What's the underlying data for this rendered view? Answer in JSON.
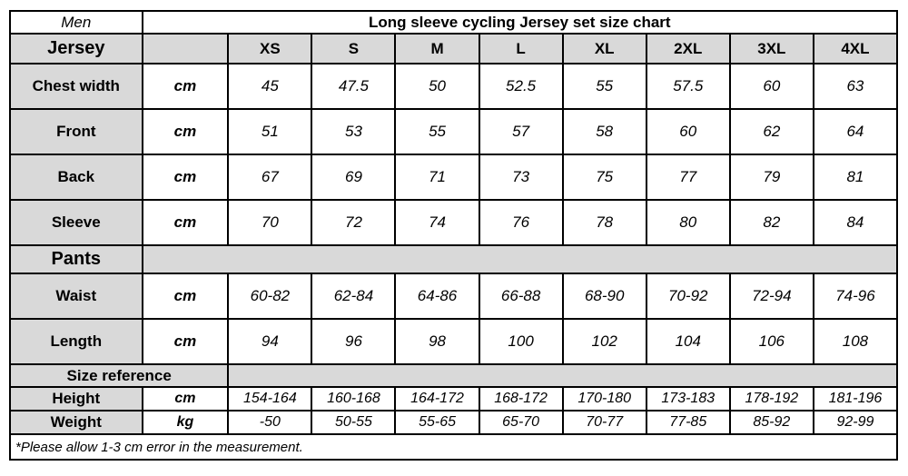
{
  "colors": {
    "header_bg": "#d9d9d9",
    "cell_bg": "#ffffff",
    "border": "#000000",
    "text": "#000000"
  },
  "header": {
    "gender_label": "Men",
    "title": "Long sleeve cycling Jersey set size chart"
  },
  "size_columns": [
    "XS",
    "S",
    "M",
    "L",
    "XL",
    "2XL",
    "3XL",
    "4XL"
  ],
  "sections": [
    {
      "name": "Jersey",
      "rows": [
        {
          "label": "Chest width",
          "unit": "cm",
          "values": [
            "45",
            "47.5",
            "50",
            "52.5",
            "55",
            "57.5",
            "60",
            "63"
          ]
        },
        {
          "label": "Front",
          "unit": "cm",
          "values": [
            "51",
            "53",
            "55",
            "57",
            "58",
            "60",
            "62",
            "64"
          ]
        },
        {
          "label": "Back",
          "unit": "cm",
          "values": [
            "67",
            "69",
            "71",
            "73",
            "75",
            "77",
            "79",
            "81"
          ]
        },
        {
          "label": "Sleeve",
          "unit": "cm",
          "values": [
            "70",
            "72",
            "74",
            "76",
            "78",
            "80",
            "82",
            "84"
          ]
        }
      ]
    },
    {
      "name": "Pants",
      "rows": [
        {
          "label": "Waist",
          "unit": "cm",
          "values": [
            "60-82",
            "62-84",
            "64-86",
            "66-88",
            "68-90",
            "70-92",
            "72-94",
            "74-96"
          ]
        },
        {
          "label": "Length",
          "unit": "cm",
          "values": [
            "94",
            "96",
            "98",
            "100",
            "102",
            "104",
            "106",
            "108"
          ]
        }
      ]
    },
    {
      "name": "Size reference",
      "rows": [
        {
          "label": "Height",
          "unit": "cm",
          "values": [
            "154-164",
            "160-168",
            "164-172",
            "168-172",
            "170-180",
            "173-183",
            "178-192",
            "181-196"
          ]
        },
        {
          "label": "Weight",
          "unit": "kg",
          "values": [
            "-50",
            "50-55",
            "55-65",
            "65-70",
            "70-77",
            "77-85",
            "85-92",
            "92-99"
          ]
        }
      ]
    }
  ],
  "footnote": "*Please allow 1-3 cm error in the measurement."
}
